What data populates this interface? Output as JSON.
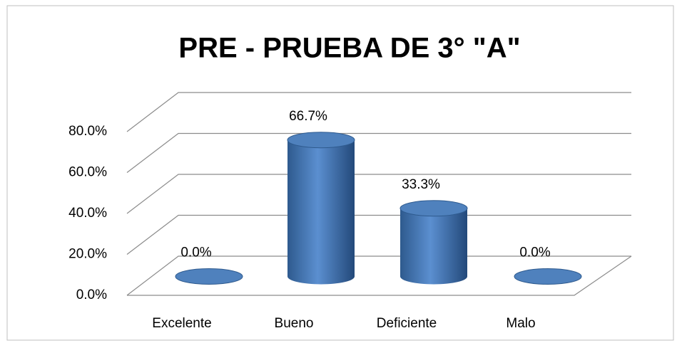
{
  "chart_data": {
    "type": "bar3d",
    "title": "PRE - PRUEBA DE 3° \"A\"",
    "categories": [
      "Excelente",
      "Bueno",
      "Deficiente",
      "Malo"
    ],
    "values": [
      0,
      66.7,
      33.3,
      0
    ],
    "value_labels": [
      "0.0%",
      "66.7%",
      "33.3%",
      "0.0%"
    ],
    "color": "#4f81bd",
    "ylim": [
      0,
      80
    ],
    "yticks": [
      {
        "value": 0,
        "label": "0.0%"
      },
      {
        "value": 20,
        "label": "20.0%"
      },
      {
        "value": 40,
        "label": "40.0%"
      },
      {
        "value": 60,
        "label": "60.0%"
      },
      {
        "value": 80,
        "label": "80.0%"
      }
    ],
    "grid": true
  }
}
